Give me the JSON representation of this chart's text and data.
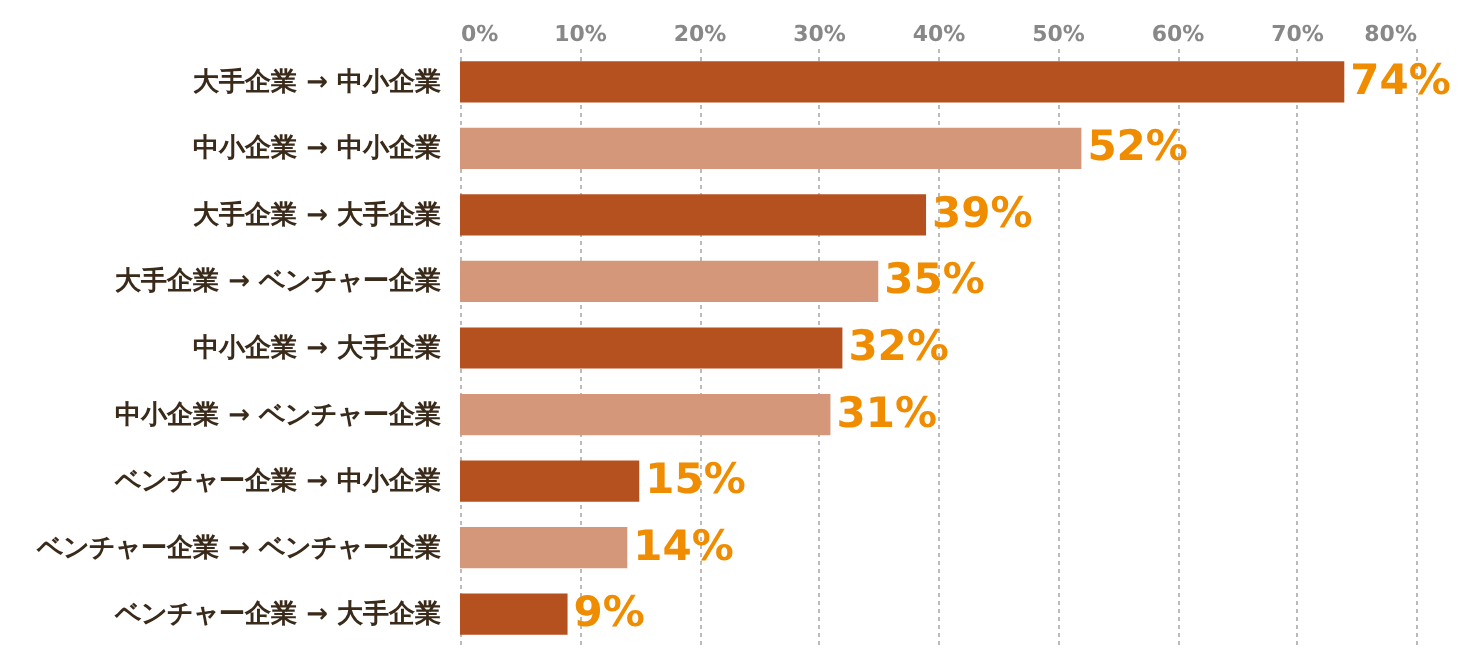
{
  "chart_data": {
    "type": "bar",
    "orientation": "horizontal",
    "categories": [
      "大手企業 → 中小企業",
      "中小企業 → 中小企業",
      "大手企業 → 大手企業",
      "大手企業 → ベンチャー企業",
      "中小企業 → 大手企業",
      "中小企業 → ベンチャー企業",
      "ベンチャー企業 → 中小企業",
      "ベンチャー企業 → ベンチャー企業",
      "ベンチャー企業 → 大手企業"
    ],
    "values": [
      74,
      52,
      39,
      35,
      32,
      31,
      15,
      14,
      9
    ],
    "colors": [
      "#b5501f",
      "#d4977a",
      "#b5501f",
      "#d4977a",
      "#b5501f",
      "#d4977a",
      "#b5501f",
      "#d4977a",
      "#b5501f"
    ],
    "value_labels": [
      "74%",
      "52%",
      "39%",
      "35%",
      "32%",
      "31%",
      "15%",
      "14%",
      "9%"
    ],
    "xlim": [
      0,
      80
    ],
    "xticks": [
      {
        "value": 0,
        "label": "0%"
      },
      {
        "value": 10,
        "label": "10%"
      },
      {
        "value": 20,
        "label": "20%"
      },
      {
        "value": 30,
        "label": "30%"
      },
      {
        "value": 40,
        "label": "40%"
      },
      {
        "value": 50,
        "label": "50%"
      },
      {
        "value": 60,
        "label": "60%"
      },
      {
        "value": 70,
        "label": "70%"
      },
      {
        "value": 80,
        "label": "80%"
      }
    ],
    "grid": "x"
  }
}
